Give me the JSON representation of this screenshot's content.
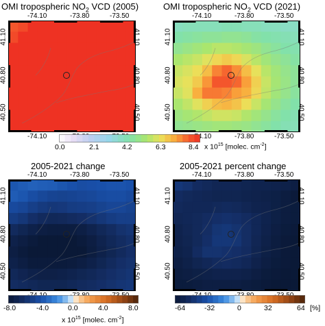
{
  "panels": [
    {
      "title_main": "OMI tropospheric NO",
      "title_sub": "2",
      "title_rest": " VCD (2005)",
      "scale": "abs",
      "rows": [
        [
          7.8,
          8.0,
          8.4,
          8.4,
          8.4,
          8.4,
          8.4,
          8.4,
          8.4,
          8.4,
          8.4,
          8.4,
          8.4
        ],
        [
          8.0,
          8.4,
          8.4,
          8.4,
          8.4,
          8.4,
          8.4,
          8.4,
          8.4,
          8.4,
          8.4,
          8.4,
          8.4
        ],
        [
          8.4,
          8.4,
          8.4,
          8.4,
          8.4,
          8.4,
          8.4,
          8.4,
          8.4,
          8.4,
          8.4,
          8.4,
          8.4
        ],
        [
          8.4,
          8.4,
          8.4,
          8.4,
          8.4,
          8.4,
          8.4,
          8.4,
          8.4,
          8.4,
          8.4,
          8.4,
          8.4
        ],
        [
          8.4,
          8.4,
          8.4,
          8.4,
          8.4,
          8.4,
          8.4,
          8.4,
          8.4,
          8.4,
          8.4,
          8.4,
          8.4
        ],
        [
          8.4,
          8.4,
          8.4,
          8.4,
          8.4,
          8.4,
          8.4,
          8.4,
          8.4,
          8.4,
          8.4,
          8.4,
          8.4
        ],
        [
          8.4,
          8.4,
          8.4,
          8.4,
          8.4,
          8.4,
          8.4,
          8.4,
          8.4,
          8.4,
          8.4,
          8.4,
          8.4
        ],
        [
          8.4,
          8.4,
          8.4,
          8.4,
          8.4,
          8.4,
          8.4,
          8.4,
          8.4,
          8.4,
          8.4,
          8.4,
          8.4
        ],
        [
          8.4,
          8.4,
          8.4,
          8.4,
          8.4,
          8.4,
          8.4,
          8.4,
          8.4,
          8.4,
          8.4,
          8.4,
          8.4
        ],
        [
          8.4,
          8.4,
          8.4,
          8.4,
          8.4,
          8.4,
          8.4,
          8.4,
          8.4,
          8.4,
          8.4,
          8.4,
          8.4
        ]
      ]
    },
    {
      "title_main": "OMI tropospheric NO",
      "title_sub": "2",
      "title_rest": " VCD (2021)",
      "scale": "abs",
      "rows": [
        [
          3.8,
          3.9,
          3.9,
          3.9,
          3.9,
          4.0,
          4.0,
          3.9,
          3.9,
          3.8,
          3.8,
          3.7,
          3.7
        ],
        [
          4.2,
          4.3,
          4.4,
          4.5,
          4.5,
          4.6,
          4.6,
          4.5,
          4.3,
          4.2,
          4.1,
          4.0,
          3.9
        ],
        [
          4.6,
          4.8,
          5.0,
          5.2,
          5.4,
          5.4,
          5.3,
          5.1,
          4.9,
          4.6,
          4.4,
          4.2,
          4.1
        ],
        [
          5.2,
          5.4,
          5.6,
          5.9,
          6.2,
          6.4,
          6.2,
          5.8,
          5.4,
          5.0,
          4.7,
          4.5,
          4.3
        ],
        [
          5.6,
          5.8,
          6.1,
          6.6,
          7.3,
          7.6,
          7.2,
          6.6,
          6.0,
          5.4,
          5.0,
          4.7,
          4.5
        ],
        [
          5.8,
          6.0,
          6.4,
          7.1,
          7.8,
          7.8,
          7.6,
          7.0,
          6.3,
          5.6,
          5.1,
          4.8,
          4.5
        ],
        [
          5.6,
          5.9,
          6.8,
          7.4,
          7.4,
          7.3,
          7.0,
          6.8,
          6.2,
          5.5,
          5.0,
          4.7,
          4.4
        ],
        [
          5.2,
          5.5,
          5.9,
          6.3,
          6.6,
          6.7,
          6.5,
          6.1,
          5.6,
          5.1,
          4.7,
          4.4,
          4.2
        ],
        [
          4.9,
          5.1,
          5.3,
          5.5,
          5.7,
          5.7,
          5.6,
          5.3,
          5.0,
          4.7,
          4.4,
          4.2,
          4.0
        ],
        [
          4.6,
          4.7,
          4.8,
          4.9,
          5.0,
          5.0,
          4.9,
          4.8,
          4.6,
          4.4,
          4.2,
          4.0,
          3.9
        ]
      ]
    },
    {
      "title_main": "2005-2021 change",
      "title_sub": "",
      "title_rest": "",
      "scale": "diff",
      "rows": [
        [
          -3.8,
          -3.6,
          -3.4,
          -3.5,
          -3.6,
          -3.8,
          -4.0,
          -4.2,
          -4.1,
          -4.0,
          -3.9,
          -3.9,
          -4.0
        ],
        [
          -3.6,
          -3.8,
          -4.2,
          -4.5,
          -4.7,
          -4.8,
          -4.7,
          -4.6,
          -4.5,
          -4.3,
          -4.2,
          -4.2,
          -4.4
        ],
        [
          -4.4,
          -4.6,
          -5.0,
          -5.3,
          -5.5,
          -5.4,
          -5.2,
          -5.1,
          -5.0,
          -4.8,
          -4.6,
          -4.6,
          -4.8
        ],
        [
          -5.2,
          -5.5,
          -6.0,
          -6.4,
          -6.6,
          -6.5,
          -6.3,
          -6.1,
          -5.8,
          -5.5,
          -5.2,
          -5.0,
          -5.0
        ],
        [
          -6.4,
          -6.8,
          -7.2,
          -7.5,
          -7.6,
          -7.6,
          -7.6,
          -7.4,
          -7.0,
          -6.6,
          -6.2,
          -5.8,
          -5.6
        ],
        [
          -7.2,
          -7.5,
          -7.8,
          -8.0,
          -8.0,
          -8.0,
          -8.0,
          -7.8,
          -7.5,
          -7.0,
          -6.6,
          -6.2,
          -5.9
        ],
        [
          -7.5,
          -7.8,
          -8.0,
          -8.0,
          -8.0,
          -8.0,
          -8.0,
          -8.0,
          -7.6,
          -7.2,
          -6.8,
          -6.4,
          -6.0
        ],
        [
          -7.2,
          -7.5,
          -7.8,
          -7.8,
          -7.8,
          -7.8,
          -7.7,
          -7.5,
          -7.2,
          -6.8,
          -6.4,
          -6.0,
          -5.8
        ],
        [
          -6.6,
          -6.9,
          -7.2,
          -7.3,
          -7.3,
          -7.2,
          -7.0,
          -6.8,
          -6.6,
          -6.3,
          -6.0,
          -5.8,
          -5.6
        ],
        [
          -6.2,
          -6.4,
          -6.6,
          -6.8,
          -6.8,
          -6.8,
          -6.6,
          -6.4,
          -6.2,
          -6.0,
          -5.8,
          -5.6,
          -5.5
        ]
      ]
    },
    {
      "title_main": "2005-2021 percent change",
      "title_sub": "",
      "title_rest": "",
      "scale": "pct",
      "rows": [
        [
          -44,
          -46,
          -50,
          -52,
          -54,
          -54,
          -54,
          -55,
          -56,
          -56,
          -57,
          -58,
          -60
        ],
        [
          -50,
          -52,
          -53,
          -54,
          -55,
          -55,
          -55,
          -56,
          -57,
          -58,
          -59,
          -61,
          -63
        ],
        [
          -52,
          -53,
          -53,
          -53,
          -52,
          -51,
          -52,
          -54,
          -56,
          -57,
          -59,
          -61,
          -62
        ],
        [
          -54,
          -53,
          -52,
          -50,
          -48,
          -47,
          -48,
          -50,
          -53,
          -56,
          -59,
          -61,
          -62
        ],
        [
          -56,
          -54,
          -52,
          -49,
          -45,
          -44,
          -46,
          -49,
          -53,
          -57,
          -60,
          -62,
          -63
        ],
        [
          -57,
          -55,
          -52,
          -48,
          -44,
          -44,
          -45,
          -49,
          -54,
          -58,
          -61,
          -63,
          -64
        ],
        [
          -58,
          -56,
          -50,
          -46,
          -46,
          -47,
          -48,
          -50,
          -55,
          -59,
          -61,
          -63,
          -64
        ],
        [
          -60,
          -58,
          -55,
          -53,
          -51,
          -50,
          -51,
          -53,
          -57,
          -60,
          -62,
          -63,
          -64
        ],
        [
          -61,
          -60,
          -59,
          -58,
          -57,
          -57,
          -57,
          -58,
          -60,
          -62,
          -63,
          -64,
          -64
        ],
        [
          -62,
          -62,
          -61,
          -60,
          -60,
          -60,
          -60,
          -61,
          -62,
          -63,
          -64,
          -64,
          -64
        ]
      ]
    }
  ],
  "axes": {
    "lon_ticks": [
      "-74.10",
      "-73.80",
      "-73.50"
    ],
    "lat_ticks": [
      "41.10",
      "40.80",
      "40.50"
    ]
  },
  "colorbars": {
    "abs": {
      "ticks": [
        "0.0",
        "2.1",
        "4.2",
        "6.3",
        "8.4"
      ],
      "label_x": "x 10",
      "label_exp": "15",
      "label_unit": " [molec. cm",
      "label_unit_exp": "-2",
      "label_close": "]",
      "range": [
        0,
        8.4
      ]
    },
    "diff": {
      "ticks": [
        "-8.0",
        "-4.0",
        "0.0",
        "4.0",
        "8.0"
      ],
      "label_x": "x 10",
      "label_exp": "15",
      "label_unit": " [molec. cm",
      "label_unit_exp": "-2",
      "label_close": "]",
      "range": [
        -8,
        8
      ]
    },
    "pct": {
      "ticks": [
        "-64",
        "-32",
        "0",
        "32",
        "64"
      ],
      "unit": "[%]",
      "range": [
        -64,
        64
      ]
    }
  },
  "chart_data": [
    {
      "type": "heatmap",
      "title": "OMI tropospheric NO2 VCD (2005)",
      "xlabel": "",
      "ylabel": "",
      "x_ticks": [
        "-74.10",
        "-73.80",
        "-73.50"
      ],
      "y_ticks": [
        "41.10",
        "40.80",
        "40.50"
      ],
      "color_range": [
        0,
        8.4
      ],
      "units": "x 10^15 [molec. cm-2]"
    },
    {
      "type": "heatmap",
      "title": "OMI tropospheric NO2 VCD (2021)",
      "xlabel": "",
      "ylabel": "",
      "x_ticks": [
        "-74.10",
        "-73.80",
        "-73.50"
      ],
      "y_ticks": [
        "41.10",
        "40.80",
        "40.50"
      ],
      "color_range": [
        0,
        8.4
      ],
      "units": "x 10^15 [molec. cm-2]"
    },
    {
      "type": "heatmap",
      "title": "2005-2021 change",
      "xlabel": "",
      "ylabel": "",
      "x_ticks": [
        "-74.10",
        "-73.80",
        "-73.50"
      ],
      "y_ticks": [
        "41.10",
        "40.80",
        "40.50"
      ],
      "color_range": [
        -8,
        8
      ],
      "units": "x 10^15 [molec. cm-2]"
    },
    {
      "type": "heatmap",
      "title": "2005-2021 percent change",
      "xlabel": "",
      "ylabel": "",
      "x_ticks": [
        "-74.10",
        "-73.80",
        "-73.50"
      ],
      "y_ticks": [
        "41.10",
        "40.80",
        "40.50"
      ],
      "color_range": [
        -64,
        64
      ],
      "units": "[%]"
    }
  ]
}
